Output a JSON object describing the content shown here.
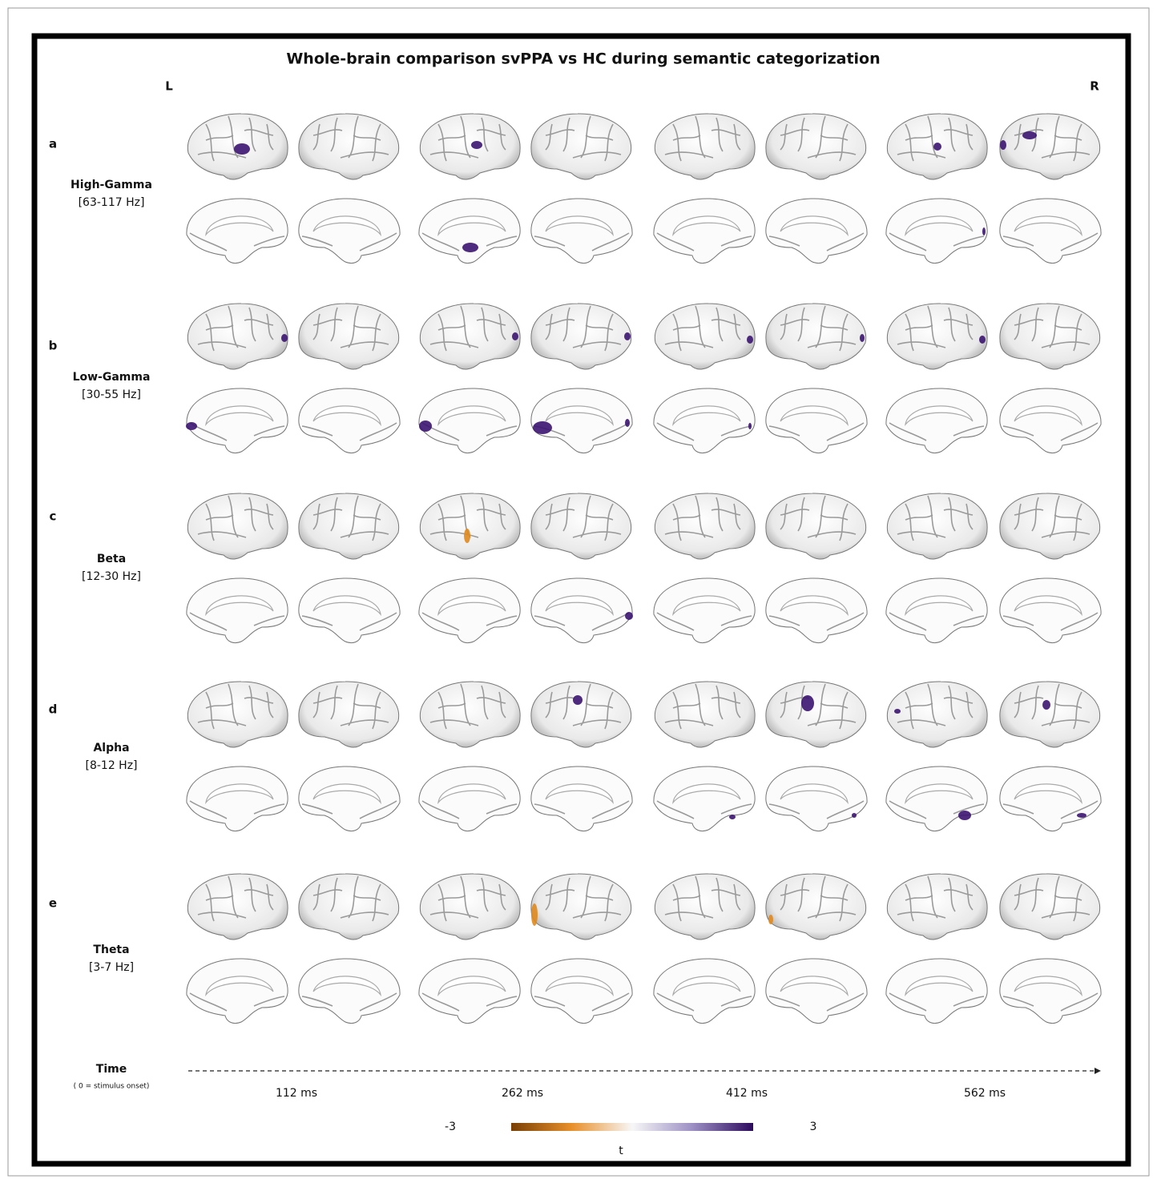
{
  "title": "Whole-brain comparison svPPA vs HC during semantic categorization",
  "hemisphere_labels": {
    "left": "L",
    "right": "R"
  },
  "rows": [
    {
      "letter": "a",
      "band": "High-Gamma",
      "range": "[63-117 Hz]"
    },
    {
      "letter": "b",
      "band": "Low-Gamma",
      "range": "[30-55 Hz]"
    },
    {
      "letter": "c",
      "band": "Beta",
      "range": "[12-30 Hz]"
    },
    {
      "letter": "d",
      "band": "Alpha",
      "range": "[8-12 Hz]"
    },
    {
      "letter": "e",
      "band": "Theta",
      "range": "[3-7 Hz]"
    }
  ],
  "time": {
    "label": "Time",
    "note": "( 0 = stimulus onset)",
    "points": [
      "112 ms",
      "262 ms",
      "412 ms",
      "562 ms"
    ]
  },
  "colorbar": {
    "min": -3,
    "max": 3,
    "label": "t"
  }
}
